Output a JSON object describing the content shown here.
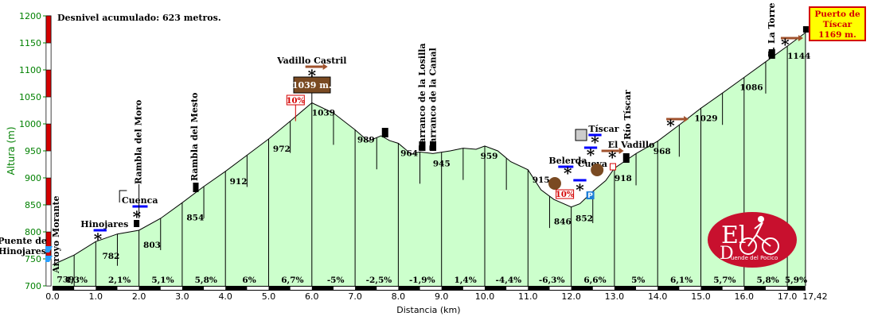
{
  "chart_data": {
    "type": "area",
    "title": "Desnivel acumulado: 623 metros.",
    "xlabel": "Distancia (km)",
    "ylabel": "Altura (m)",
    "xlim": [
      0,
      17.42
    ],
    "ylim": [
      700,
      1200
    ],
    "xticks": [
      "0.0",
      "1.0",
      "2.0",
      "3.0",
      "4.0",
      "5.0",
      "6.0",
      "7.0",
      "8.0",
      "9.0",
      "10.0",
      "11.0",
      "12.0",
      "13.0",
      "14.0",
      "15.0",
      "16.0",
      "17.0"
    ],
    "xend_label": "17,42",
    "yticks": [
      "700",
      "750",
      "800",
      "850",
      "900",
      "950",
      "1000",
      "1050",
      "1100",
      "1150",
      "1200"
    ],
    "profile": [
      [
        0,
        739
      ],
      [
        0.5,
        757
      ],
      [
        1.0,
        782
      ],
      [
        1.5,
        796
      ],
      [
        2.0,
        803
      ],
      [
        2.5,
        825
      ],
      [
        3.0,
        854
      ],
      [
        3.5,
        884
      ],
      [
        4.0,
        912
      ],
      [
        4.5,
        942
      ],
      [
        5.0,
        972
      ],
      [
        5.5,
        1005
      ],
      [
        6.0,
        1039
      ],
      [
        6.5,
        1020
      ],
      [
        7.0,
        989
      ],
      [
        7.3,
        968
      ],
      [
        7.6,
        978
      ],
      [
        7.8,
        969
      ],
      [
        8.0,
        964
      ],
      [
        8.3,
        944
      ],
      [
        8.5,
        948
      ],
      [
        8.8,
        945
      ],
      [
        9.2,
        950
      ],
      [
        9.5,
        955
      ],
      [
        9.8,
        953
      ],
      [
        10.0,
        959
      ],
      [
        10.3,
        950
      ],
      [
        10.6,
        930
      ],
      [
        11.0,
        915
      ],
      [
        11.3,
        878
      ],
      [
        11.6,
        860
      ],
      [
        12.0,
        846
      ],
      [
        12.2,
        852
      ],
      [
        12.5,
        875
      ],
      [
        12.8,
        895
      ],
      [
        13.0,
        918
      ],
      [
        13.5,
        945
      ],
      [
        14.0,
        968
      ],
      [
        14.5,
        998
      ],
      [
        15.0,
        1029
      ],
      [
        15.5,
        1057
      ],
      [
        16.0,
        1086
      ],
      [
        16.5,
        1115
      ],
      [
        17.0,
        1144
      ],
      [
        17.42,
        1169
      ]
    ],
    "segment_grades": [
      "4,3%",
      "2,1%",
      "5,1%",
      "5,8%",
      "6%",
      "6,7%",
      "-5%",
      "-2,5%",
      "-1,9%",
      "1,4%",
      "-4,4%",
      "-6,3%",
      "6,6%",
      "5%",
      "6,1%",
      "5,7%",
      "5,8%",
      "5,9%"
    ],
    "elevation_labels": [
      {
        "x": 0.1,
        "y": 739,
        "label": "739"
      },
      {
        "x": 1.15,
        "y": 782,
        "label": "782"
      },
      {
        "x": 2.1,
        "y": 803,
        "label": "803"
      },
      {
        "x": 3.1,
        "y": 854,
        "label": "854"
      },
      {
        "x": 4.1,
        "y": 912,
        "label": "912"
      },
      {
        "x": 5.1,
        "y": 972,
        "label": "972"
      },
      {
        "x": 6.0,
        "y": 1039,
        "label": "1039"
      },
      {
        "x": 7.05,
        "y": 989,
        "label": "989"
      },
      {
        "x": 8.05,
        "y": 964,
        "label": "964"
      },
      {
        "x": 8.8,
        "y": 945,
        "label": "945"
      },
      {
        "x": 9.9,
        "y": 959,
        "label": "959"
      },
      {
        "x": 11.1,
        "y": 915,
        "label": "915"
      },
      {
        "x": 11.6,
        "y": 846,
        "label": "846"
      },
      {
        "x": 12.1,
        "y": 852,
        "label": "852"
      },
      {
        "x": 13.0,
        "y": 918,
        "label": "918"
      },
      {
        "x": 13.9,
        "y": 968,
        "label": "968"
      },
      {
        "x": 14.85,
        "y": 1029,
        "label": "1029"
      },
      {
        "x": 15.9,
        "y": 1086,
        "label": "1086"
      },
      {
        "x": 17.0,
        "y": 1144,
        "label": "1144"
      }
    ],
    "places": [
      {
        "name": "Puente de Hinojares",
        "x": 0.0
      },
      {
        "name": "Arroyo Morante",
        "x": 0.15
      },
      {
        "name": "Hinojares",
        "x": 1.05
      },
      {
        "name": "Cuenca",
        "x": 1.95
      },
      {
        "name": "Rambla del Moro",
        "x": 2.0
      },
      {
        "name": "Rambla del Mesto",
        "x": 3.3
      },
      {
        "name": "Vadillo Castril",
        "x": 6.0
      },
      {
        "name": "Barranco de la Losilla",
        "x": 8.55
      },
      {
        "name": "Barranco de la Canal",
        "x": 8.8
      },
      {
        "name": "Belerda",
        "x": 12.0
      },
      {
        "name": "Cueva",
        "x": 12.6
      },
      {
        "name": "Tíscar",
        "x": 12.7
      },
      {
        "name": "El Vadillo",
        "x": 13.0
      },
      {
        "name": "Río Tíscar",
        "x": 13.2
      },
      {
        "name": "B. La Torre",
        "x": 16.6
      }
    ],
    "summit_label": "1039 m.",
    "grade_flags": [
      "10%",
      "10%"
    ],
    "parking_label": "P",
    "badge": [
      "Puerto de",
      "Tíscar",
      "1169 m."
    ],
    "logo_text": {
      "big": "El",
      "small": "D",
      "sub": "uende del Pocico"
    },
    "colors": {
      "fill": "#ccffcc",
      "axis": "#008000",
      "ruler": "#000000",
      "badge_bg": "#ffff00",
      "badge_border": "#d40000",
      "logo": "#c8102e",
      "summit_box": "#7a4a22",
      "arrow_brown": "#a0522d",
      "arrow_blue": "#0000ff"
    }
  }
}
